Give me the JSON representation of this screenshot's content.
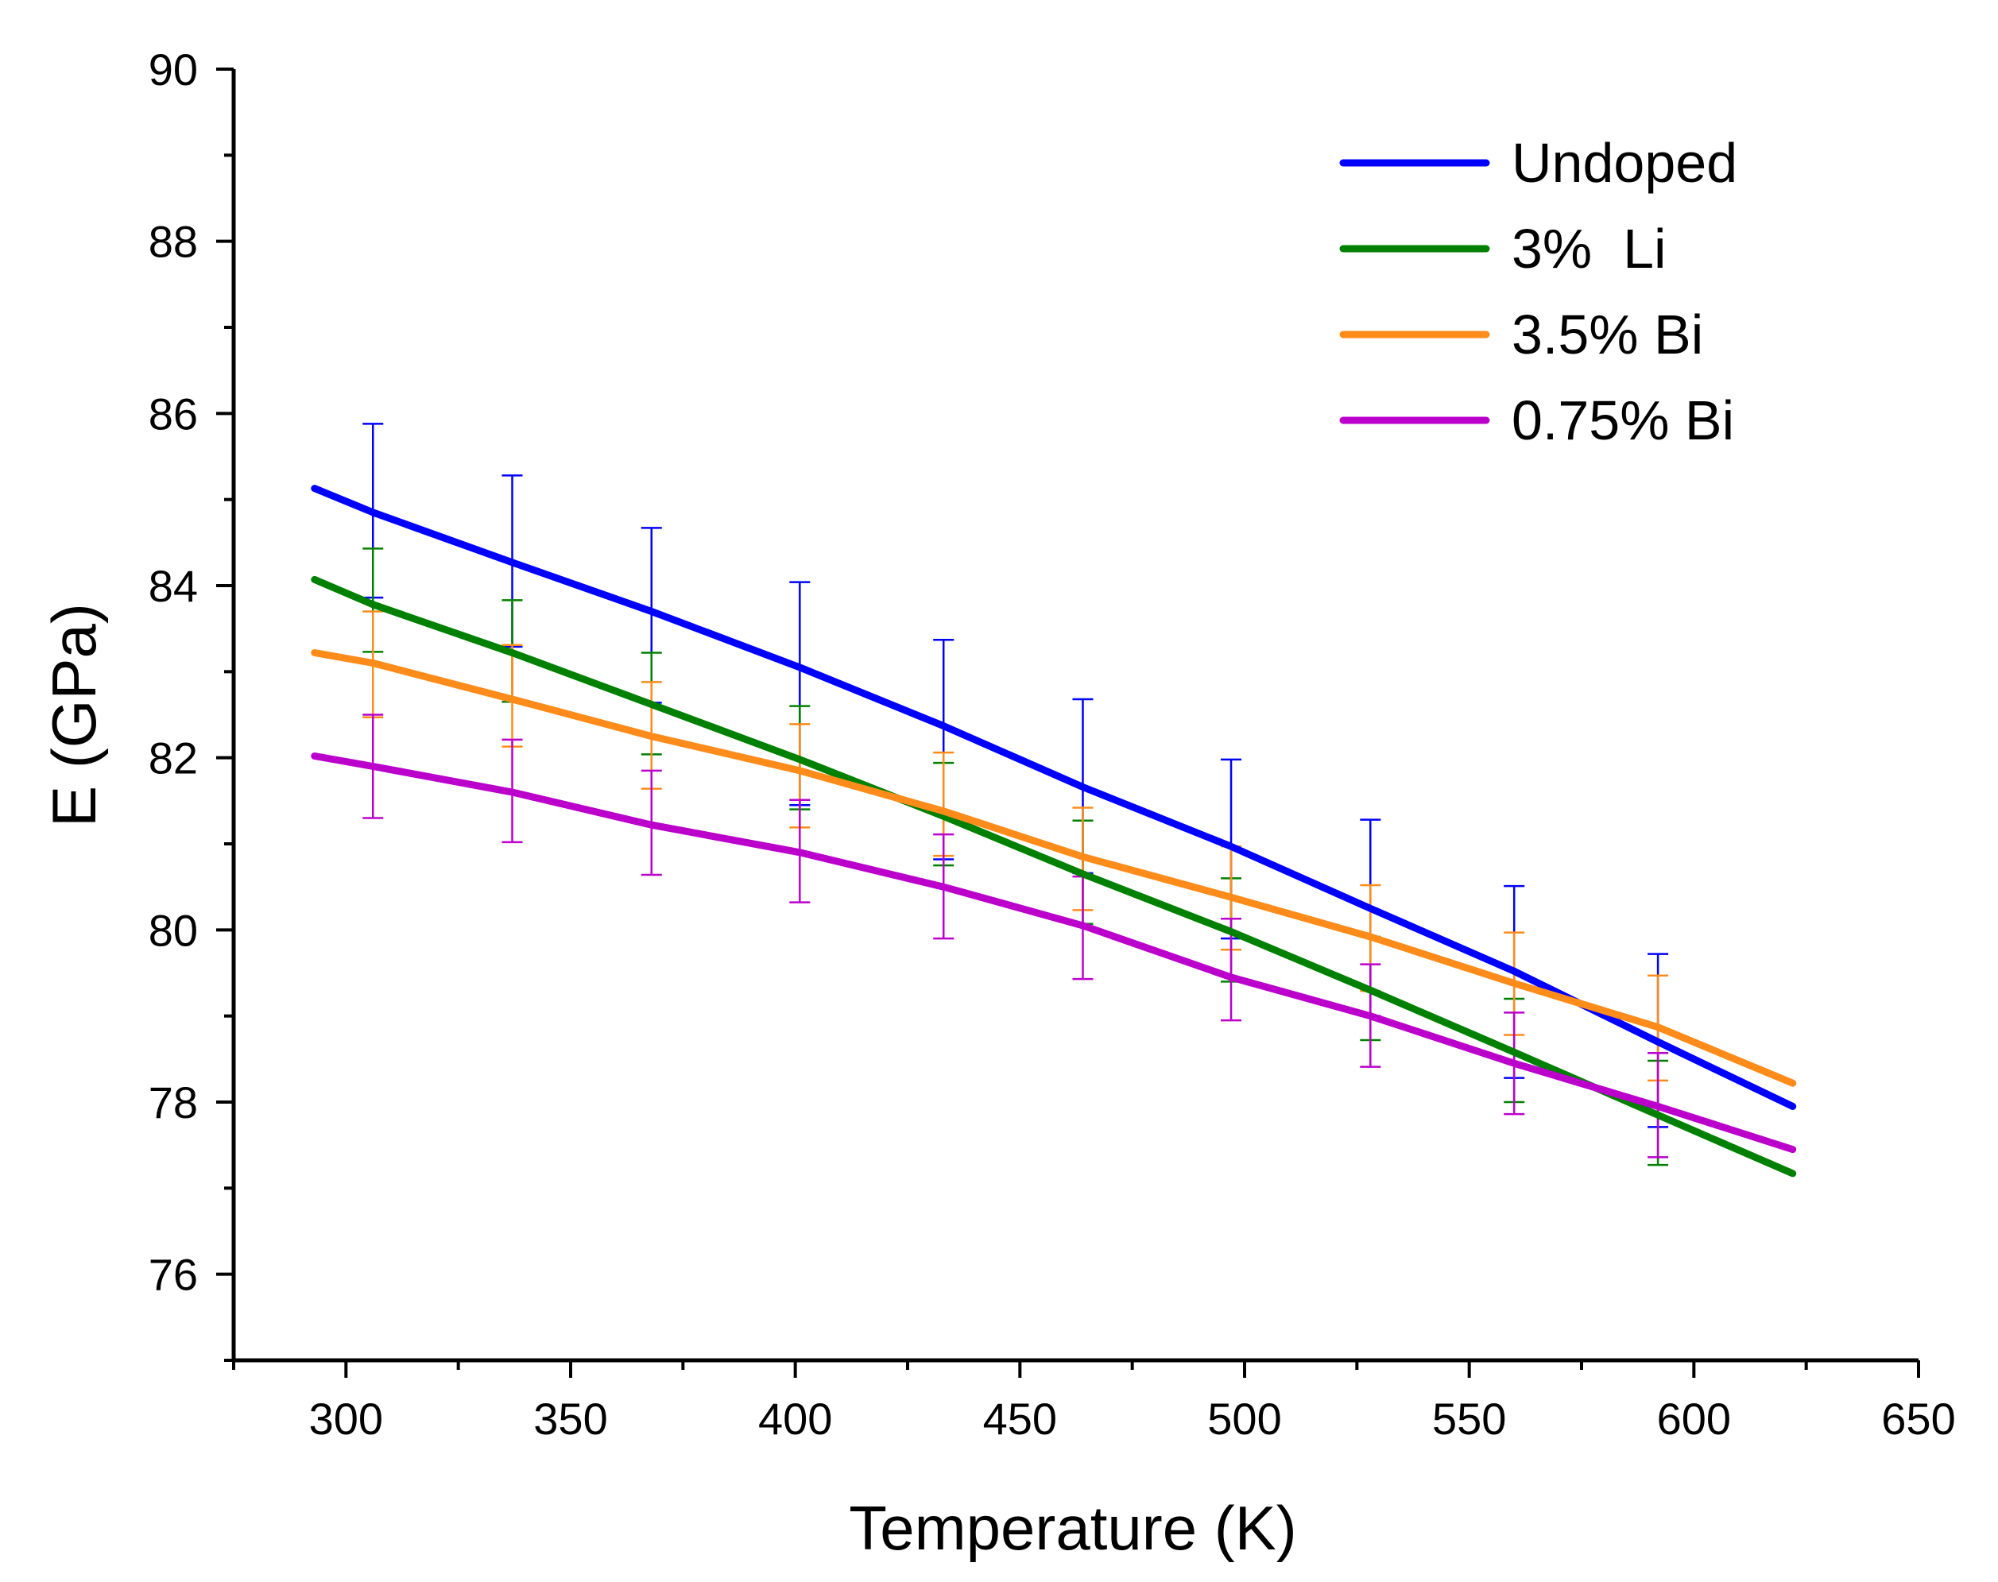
{
  "chart_data": {
    "type": "line",
    "title": "",
    "xlabel": "Temperature (K)",
    "ylabel": "E (GPa)",
    "xlim": [
      275,
      650
    ],
    "ylim": [
      75,
      90
    ],
    "xticks": [
      300,
      350,
      400,
      450,
      500,
      550,
      600,
      650
    ],
    "yticks": [
      76,
      78,
      80,
      82,
      84,
      86,
      88,
      90
    ],
    "xtick_labels": [
      "300",
      "350",
      "400",
      "450",
      "500",
      "550",
      "600",
      "650"
    ],
    "ytick_labels": [
      "76",
      "78",
      "80",
      "82",
      "84",
      "86",
      "88",
      "90"
    ],
    "grid": false,
    "legend_position": "top-right",
    "series": [
      {
        "name": "Undoped",
        "color": "#0000ff",
        "x": [
          293,
          306,
          337,
          368,
          401,
          433,
          464,
          497,
          528,
          560,
          592,
          622
        ],
        "y": [
          85.13,
          84.85,
          84.27,
          83.7,
          83.05,
          82.37,
          81.66,
          80.97,
          80.25,
          79.52,
          78.7,
          77.95
        ],
        "errors": {
          "x": [
            306,
            337,
            368,
            401,
            433,
            464,
            497,
            528,
            560,
            592
          ],
          "low": [
            83.86,
            83.29,
            82.64,
            81.45,
            80.82,
            80.66,
            79.9,
            79.0,
            78.28,
            77.71
          ],
          "high": [
            85.88,
            85.28,
            84.67,
            84.04,
            83.37,
            82.68,
            81.98,
            81.28,
            80.51,
            79.72
          ]
        }
      },
      {
        "name": "3%  Li",
        "color": "#008000",
        "x": [
          293,
          306,
          337,
          368,
          401,
          433,
          464,
          497,
          528,
          560,
          592,
          622
        ],
        "y": [
          84.07,
          83.78,
          83.22,
          82.62,
          81.98,
          81.32,
          80.65,
          79.98,
          79.3,
          78.58,
          77.85,
          77.17
        ],
        "errors": {
          "x": [
            306,
            337,
            368,
            401,
            433,
            464,
            497,
            528,
            560,
            592
          ],
          "low": [
            83.23,
            82.65,
            82.04,
            81.4,
            80.75,
            80.07,
            79.4,
            78.72,
            78.0,
            77.27
          ],
          "high": [
            84.43,
            83.83,
            83.22,
            82.6,
            81.94,
            81.27,
            80.6,
            79.92,
            79.2,
            78.48
          ]
        }
      },
      {
        "name": "3.5% Bi",
        "color": "#ff8c1a",
        "x": [
          293,
          306,
          337,
          368,
          401,
          433,
          464,
          497,
          528,
          560,
          592,
          622
        ],
        "y": [
          83.22,
          83.1,
          82.68,
          82.25,
          81.85,
          81.38,
          80.85,
          80.38,
          79.92,
          79.38,
          78.87,
          78.22
        ],
        "errors": {
          "x": [
            306,
            337,
            368,
            401,
            433,
            464,
            497,
            528,
            560,
            592
          ],
          "low": [
            82.47,
            82.13,
            81.64,
            81.19,
            80.86,
            80.23,
            79.77,
            79.29,
            78.78,
            78.25
          ],
          "high": [
            83.7,
            83.31,
            82.88,
            82.39,
            82.06,
            81.42,
            80.97,
            80.52,
            79.97,
            79.47
          ]
        }
      },
      {
        "name": "0.75% Bi",
        "color": "#bb00cc",
        "x": [
          293,
          306,
          337,
          368,
          401,
          433,
          464,
          497,
          528,
          560,
          592,
          622
        ],
        "y": [
          82.02,
          81.9,
          81.6,
          81.22,
          80.9,
          80.5,
          80.05,
          79.45,
          79.0,
          78.45,
          77.95,
          77.45
        ],
        "errors": {
          "x": [
            306,
            337,
            368,
            401,
            433,
            464,
            497,
            528,
            560,
            592
          ],
          "low": [
            81.3,
            81.02,
            80.64,
            80.32,
            79.9,
            79.43,
            78.95,
            78.41,
            77.86,
            77.36
          ],
          "high": [
            82.5,
            82.21,
            81.85,
            81.51,
            81.11,
            80.62,
            80.13,
            79.6,
            79.04,
            78.57
          ]
        }
      }
    ]
  }
}
